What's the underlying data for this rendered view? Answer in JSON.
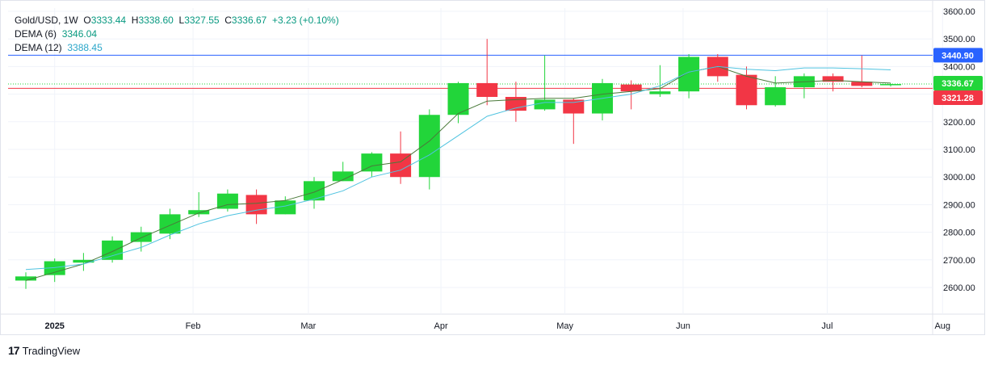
{
  "legend": {
    "symbol": "Gold/USD, 1W",
    "open_label": "O",
    "open": "3333.44",
    "high_label": "H",
    "high": "3338.60",
    "low_label": "L",
    "low": "3327.55",
    "close_label": "C",
    "close": "3336.67",
    "change": "+3.23 (+0.10%)",
    "dema6_label": "DEMA (6)",
    "dema6_value": "3346.04",
    "dema12_label": "DEMA (12)",
    "dema12_value": "3388.45"
  },
  "branding": {
    "logo": "17",
    "name": "TradingView"
  },
  "colors": {
    "up": "#22d53a",
    "down": "#f23645",
    "dema6": "#4a7a3a",
    "dema12": "#4fc3e0",
    "hline": "#2962ff",
    "grid": "#f0f3fa",
    "axis_text": "#131722"
  },
  "chart_data": {
    "type": "candlestick",
    "ylim": [
      2500,
      3600
    ],
    "yticks": [
      2600,
      2700,
      2800,
      2900,
      3000,
      3100,
      3200,
      3300,
      3400,
      3500,
      3600
    ],
    "ytick_labels": [
      "2600.00",
      "2700.00",
      "2800.00",
      "2900.00",
      "3000.00",
      "3100.00",
      "3200.00",
      "3300.00",
      "3400.00",
      "3500.00",
      "3600.00"
    ],
    "xtick_labels": [
      {
        "label": "2025",
        "bold": true,
        "index": 1
      },
      {
        "label": "Feb",
        "bold": false,
        "index": 5.8
      },
      {
        "label": "Mar",
        "bold": false,
        "index": 9.8
      },
      {
        "label": "Apr",
        "bold": false,
        "index": 14.4
      },
      {
        "label": "May",
        "bold": false,
        "index": 18.7
      },
      {
        "label": "Jun",
        "bold": false,
        "index": 22.8
      },
      {
        "label": "Jul",
        "bold": false,
        "index": 27.8
      },
      {
        "label": "Aug",
        "bold": false,
        "index": 31.8
      }
    ],
    "candles": [
      {
        "o": 2625,
        "h": 2655,
        "l": 2595,
        "c": 2640
      },
      {
        "o": 2645,
        "h": 2705,
        "l": 2620,
        "c": 2695
      },
      {
        "o": 2690,
        "h": 2725,
        "l": 2660,
        "c": 2700
      },
      {
        "o": 2700,
        "h": 2785,
        "l": 2690,
        "c": 2770
      },
      {
        "o": 2765,
        "h": 2820,
        "l": 2730,
        "c": 2800
      },
      {
        "o": 2795,
        "h": 2885,
        "l": 2775,
        "c": 2865
      },
      {
        "o": 2865,
        "h": 2945,
        "l": 2855,
        "c": 2880
      },
      {
        "o": 2885,
        "h": 2955,
        "l": 2875,
        "c": 2940
      },
      {
        "o": 2935,
        "h": 2955,
        "l": 2830,
        "c": 2865
      },
      {
        "o": 2865,
        "h": 2930,
        "l": 2865,
        "c": 2915
      },
      {
        "o": 2915,
        "h": 3000,
        "l": 2885,
        "c": 2985
      },
      {
        "o": 2985,
        "h": 3055,
        "l": 2985,
        "c": 3020
      },
      {
        "o": 3020,
        "h": 3090,
        "l": 3000,
        "c": 3085
      },
      {
        "o": 3085,
        "h": 3165,
        "l": 2975,
        "c": 3000
      },
      {
        "o": 3000,
        "h": 3245,
        "l": 2955,
        "c": 3225
      },
      {
        "o": 3225,
        "h": 3345,
        "l": 3195,
        "c": 3340
      },
      {
        "o": 3340,
        "h": 3500,
        "l": 3260,
        "c": 3290
      },
      {
        "o": 3290,
        "h": 3345,
        "l": 3200,
        "c": 3240
      },
      {
        "o": 3245,
        "h": 3440,
        "l": 3240,
        "c": 3280
      },
      {
        "o": 3280,
        "h": 3285,
        "l": 3120,
        "c": 3230
      },
      {
        "o": 3230,
        "h": 3355,
        "l": 3205,
        "c": 3340
      },
      {
        "o": 3335,
        "h": 3350,
        "l": 3245,
        "c": 3310
      },
      {
        "o": 3300,
        "h": 3405,
        "l": 3290,
        "c": 3310
      },
      {
        "o": 3310,
        "h": 3445,
        "l": 3285,
        "c": 3435
      },
      {
        "o": 3435,
        "h": 3445,
        "l": 3345,
        "c": 3365
      },
      {
        "o": 3370,
        "h": 3400,
        "l": 3245,
        "c": 3260
      },
      {
        "o": 3260,
        "h": 3365,
        "l": 3255,
        "c": 3325
      },
      {
        "o": 3325,
        "h": 3375,
        "l": 3285,
        "c": 3365
      },
      {
        "o": 3365,
        "h": 3375,
        "l": 3310,
        "c": 3345
      },
      {
        "o": 3345,
        "h": 3440,
        "l": 3325,
        "c": 3330
      },
      {
        "o": 3333.44,
        "h": 3338.6,
        "l": 3327.55,
        "c": 3336.67
      }
    ],
    "series": [
      {
        "name": "DEMA (6)",
        "values": [
          2625,
          2655,
          2685,
          2730,
          2780,
          2825,
          2870,
          2900,
          2905,
          2915,
          2945,
          2990,
          3040,
          3055,
          3130,
          3230,
          3275,
          3280,
          3285,
          3285,
          3300,
          3310,
          3320,
          3380,
          3400,
          3365,
          3340,
          3345,
          3350,
          3345,
          3340
        ]
      },
      {
        "name": "DEMA (12)",
        "values": [
          2665,
          2672,
          2685,
          2715,
          2745,
          2790,
          2830,
          2860,
          2880,
          2895,
          2920,
          2950,
          3000,
          3025,
          3080,
          3150,
          3220,
          3250,
          3270,
          3270,
          3285,
          3300,
          3330,
          3380,
          3400,
          3390,
          3385,
          3395,
          3395,
          3392,
          3388
        ]
      }
    ],
    "price_lines": [
      {
        "value": 3440.9,
        "label": "3440.90",
        "color": "#2962ff",
        "style": "solid"
      },
      {
        "value": 3336.67,
        "label": "3336.67",
        "color": "#22d53a",
        "style": "dotted"
      },
      {
        "value": 3321.28,
        "label": "3321.28",
        "color": "#f23645",
        "style": "solid"
      }
    ]
  }
}
